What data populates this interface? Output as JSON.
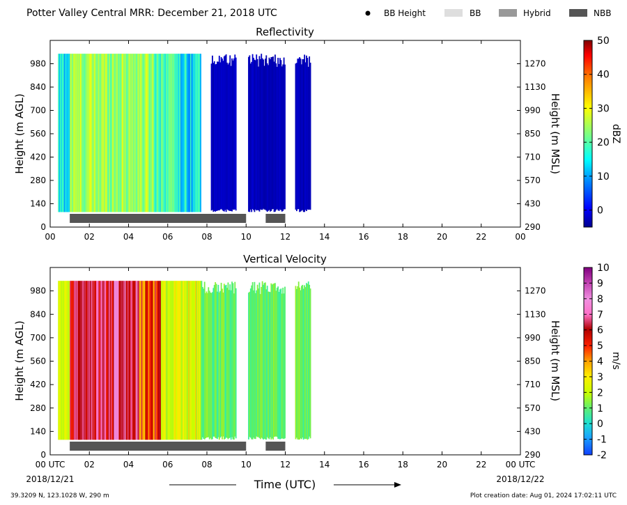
{
  "header": {
    "title": "Potter Valley Central MRR:  December 21, 2018 UTC",
    "legend": [
      {
        "label": "BB Height",
        "swatch": "dot",
        "color": "#000000"
      },
      {
        "label": "BB",
        "swatch": "box",
        "color": "#dedede"
      },
      {
        "label": "Hybrid",
        "swatch": "box",
        "color": "#999999"
      },
      {
        "label": "NBB",
        "swatch": "box",
        "color": "#555555"
      }
    ]
  },
  "footer": {
    "location": "39.3209 N, 123.1028 W, 290 m",
    "creation_date": "Plot creation date: Aug 01, 2024 17:02:11 UTC",
    "x_axis_label": "Time (UTC)",
    "start_date": "2018/12/21",
    "end_date": "2018/12/22"
  },
  "chart_data": [
    {
      "type": "heatmap",
      "title": "Reflectivity",
      "ylabel": "Height (m AGL)",
      "ylabel_right": "Height (m MSL)",
      "colorbar_label": "dBZ",
      "colorbar_ticks": [
        "0",
        "10",
        "20",
        "30",
        "40",
        "50"
      ],
      "colorbar_range": [
        -5,
        50
      ],
      "xlim": [
        0,
        24
      ],
      "x_tick_labels": [
        "00",
        "02",
        "04",
        "06",
        "08",
        "10",
        "12",
        "14",
        "16",
        "18",
        "20",
        "22",
        "00"
      ],
      "ylim": [
        0,
        1120
      ],
      "y_ticks_agl": [
        0,
        140,
        280,
        420,
        560,
        700,
        840,
        980
      ],
      "y_ticks_msl": [
        290,
        430,
        570,
        710,
        850,
        990,
        1130,
        1270
      ],
      "data_height_range_agl": [
        90,
        1040
      ],
      "echo_segments": [
        {
          "start": 0.4,
          "end": 7.7,
          "character": "moderate reflectivity 5-25 dBZ"
        },
        {
          "start": 8.2,
          "end": 9.5,
          "character": "weak reflectivity about -3 dBZ"
        },
        {
          "start": 10.1,
          "end": 12.0,
          "character": "weak reflectivity about -3 dBZ"
        },
        {
          "start": 12.5,
          "end": 13.3,
          "character": "weak reflectivity about -3 dBZ"
        }
      ],
      "bright_band_bars": [
        {
          "start": 1.0,
          "end": 10.0,
          "type": "NBB"
        },
        {
          "start": 11.0,
          "end": 12.0,
          "type": "NBB"
        }
      ]
    },
    {
      "type": "heatmap",
      "title": "Vertical Velocity",
      "ylabel": "Height (m AGL)",
      "ylabel_right": "Height (m MSL)",
      "colorbar_label": "m/s",
      "colorbar_ticks": [
        "-2",
        "-1",
        "0",
        "1",
        "2",
        "3",
        "4",
        "5",
        "6",
        "7",
        "8",
        "9",
        "10"
      ],
      "colorbar_range": [
        -2,
        10
      ],
      "xlim": [
        0,
        24
      ],
      "x_tick_labels": [
        "00 UTC",
        "02",
        "04",
        "06",
        "08",
        "10",
        "12",
        "14",
        "16",
        "18",
        "20",
        "22",
        "00 UTC"
      ],
      "ylim": [
        0,
        1120
      ],
      "y_ticks_agl": [
        0,
        140,
        280,
        420,
        560,
        700,
        840,
        980
      ],
      "y_ticks_msl": [
        290,
        430,
        570,
        710,
        850,
        990,
        1130,
        1270
      ],
      "data_height_range_agl": [
        90,
        1040
      ],
      "echo_segments": [
        {
          "start": 0.4,
          "end": 7.7,
          "character": "strong fall speeds 2-8 m/s"
        },
        {
          "start": 7.7,
          "end": 9.5,
          "character": "weak fall speeds about 0.5-1.5 m/s"
        },
        {
          "start": 10.1,
          "end": 12.0,
          "character": "weak fall speeds about 0.5-1.5 m/s"
        },
        {
          "start": 12.5,
          "end": 13.3,
          "character": "weak fall speeds about 0.5-1 m/s"
        }
      ],
      "bright_band_bars": [
        {
          "start": 1.0,
          "end": 10.0,
          "type": "NBB"
        },
        {
          "start": 11.0,
          "end": 12.0,
          "type": "NBB"
        }
      ]
    }
  ]
}
